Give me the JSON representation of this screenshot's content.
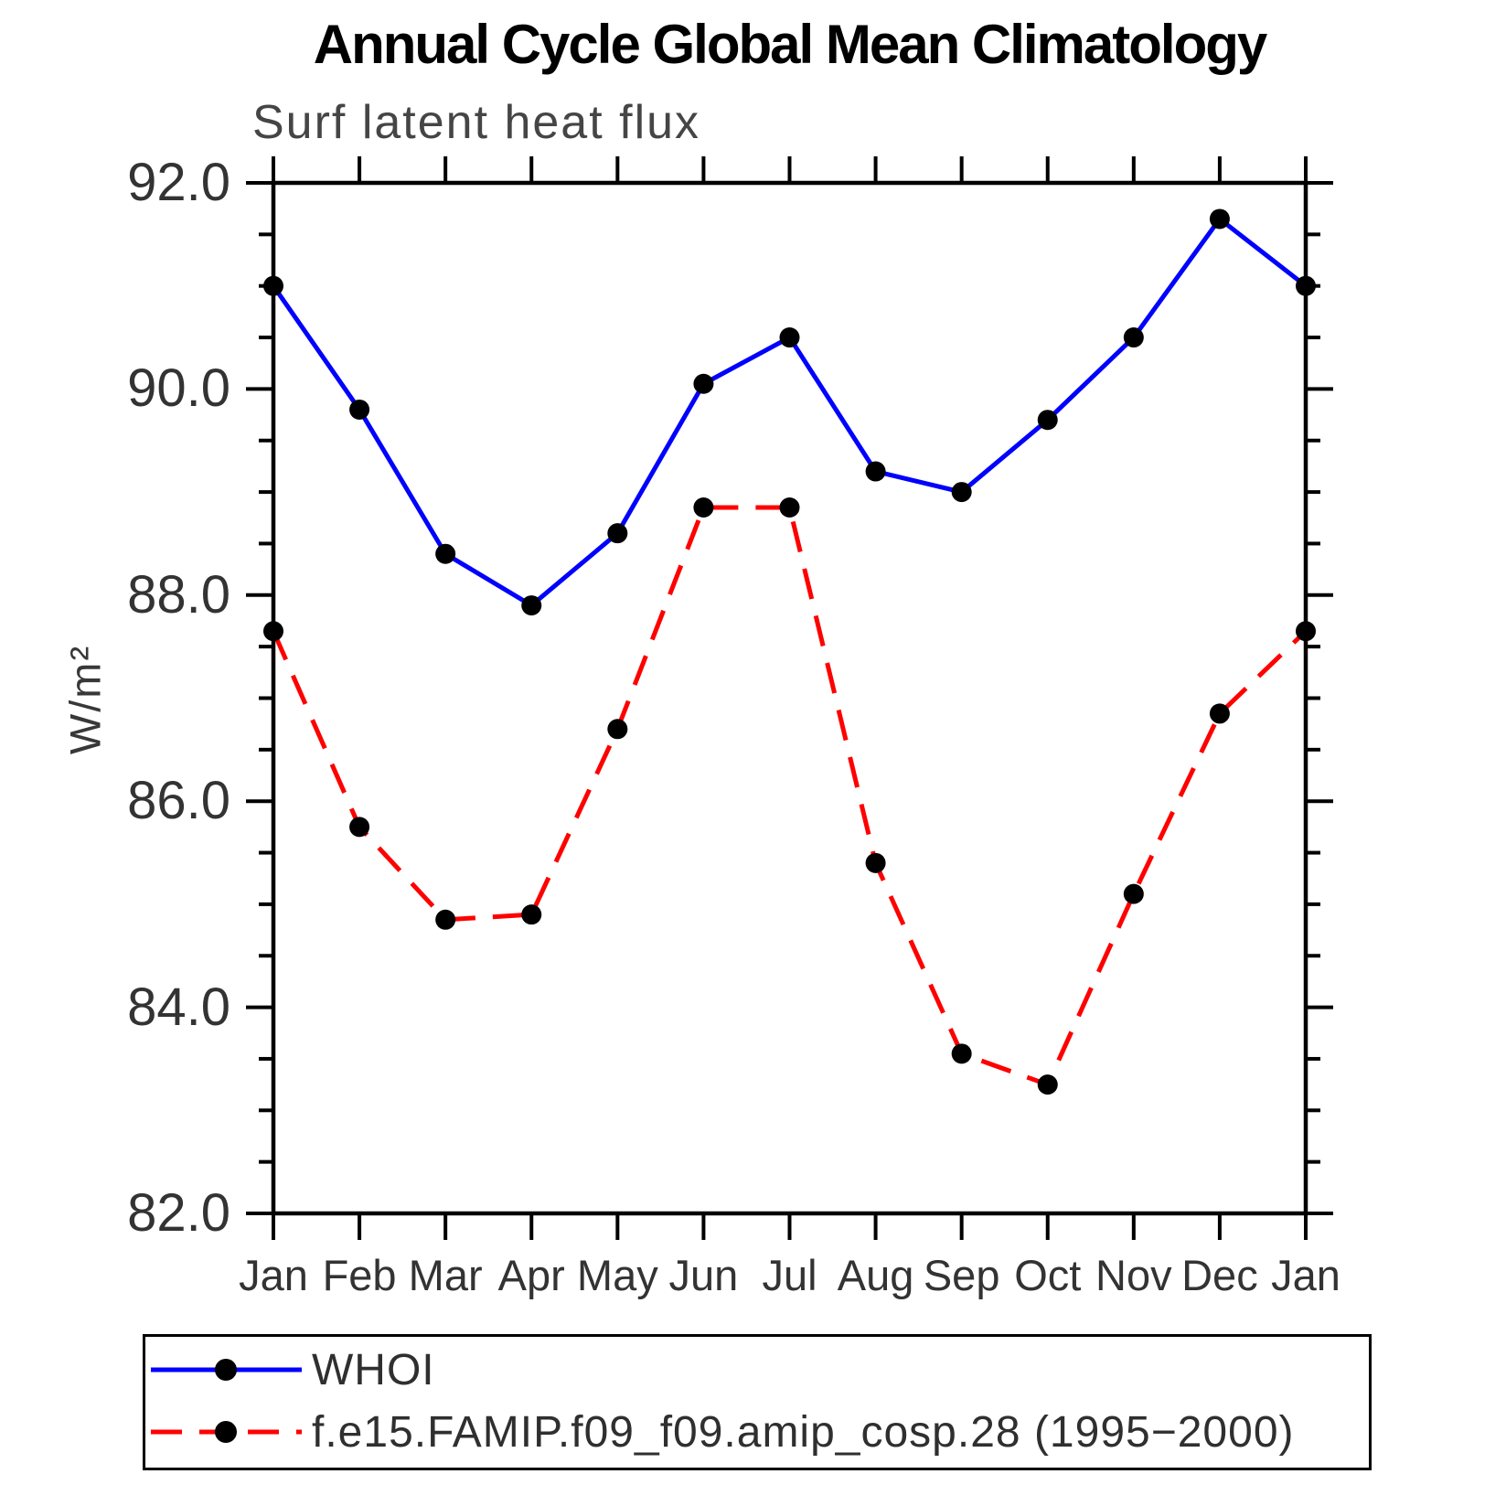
{
  "title": "Annual Cycle Global Mean Climatology",
  "subtitle": "Surf latent heat flux",
  "ylabel": "W/m²",
  "colors": {
    "series_whoi": "#0000ff",
    "series_model": "#ff0000",
    "marker": "#000000",
    "axis": "#000000",
    "text": "#333333"
  },
  "chart_data": {
    "type": "line",
    "categories": [
      "Jan",
      "Feb",
      "Mar",
      "Apr",
      "May",
      "Jun",
      "Jul",
      "Aug",
      "Sep",
      "Oct",
      "Nov",
      "Dec",
      "Jan"
    ],
    "series": [
      {
        "name": "WHOI",
        "color": "#0000ff",
        "line_style": "solid",
        "marker": "filled-black-circle",
        "values": [
          91.0,
          89.8,
          88.4,
          87.9,
          88.6,
          90.05,
          90.5,
          89.2,
          89.0,
          89.7,
          90.5,
          91.65,
          91.0
        ]
      },
      {
        "name": "f.e15.FAMIP.f09_f09.amip_cosp.28 (1995−2000)",
        "color": "#ff0000",
        "line_style": "dashed",
        "marker": "filled-black-circle",
        "values": [
          87.65,
          85.75,
          84.85,
          84.9,
          86.7,
          88.85,
          88.85,
          85.4,
          83.55,
          83.25,
          85.1,
          86.85,
          87.65
        ]
      }
    ],
    "title": "Annual Cycle Global Mean Climatology",
    "subtitle": "Surf latent heat flux",
    "xlabel": "",
    "ylabel": "W/m²",
    "ylim": [
      82.0,
      92.0
    ],
    "ytick_major_labels": [
      "92.0",
      "90.0",
      "88.0",
      "86.0",
      "84.0",
      "82.0"
    ],
    "ytick_major_values": [
      92.0,
      90.0,
      88.0,
      86.0,
      84.0,
      82.0
    ],
    "ytick_minor_step": 0.5,
    "grid": false,
    "legend_position": "bottom"
  },
  "legend": {
    "items": [
      {
        "label": "WHOI",
        "color": "#0000ff",
        "dash": "solid"
      },
      {
        "label": "f.e15.FAMIP.f09_f09.amip_cosp.28 (1995−2000)",
        "color": "#ff0000",
        "dash": "dashed"
      }
    ]
  }
}
